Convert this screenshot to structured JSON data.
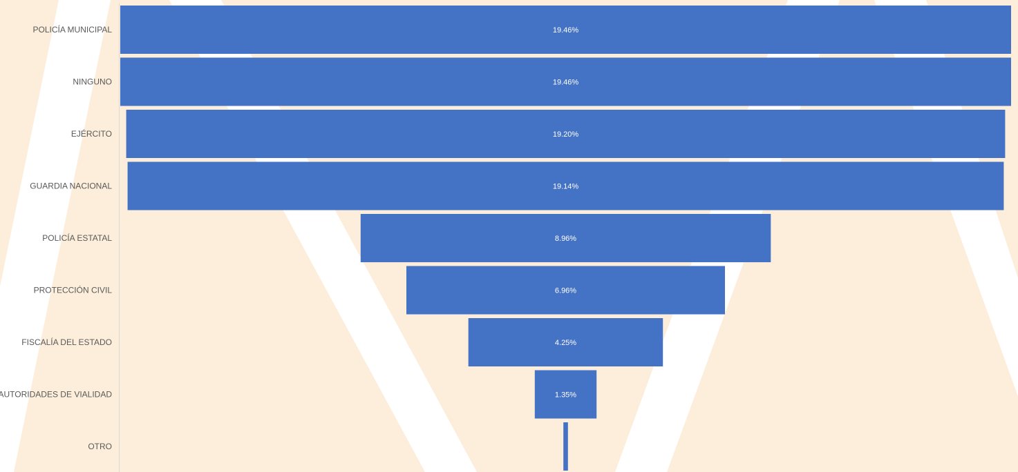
{
  "colors": {
    "background": "#fdeedb",
    "stripe": "#ffffff",
    "bar": "#4472c4",
    "bar_label_text": "#ffffff",
    "category_text": "#595959",
    "axis_line": "#d9d9d9"
  },
  "chart_data": {
    "type": "bar",
    "orientation": "horizontal-funnel",
    "categories": [
      "POLICÍA MUNICIPAL",
      "NINGUNO",
      "EJÉRCITO",
      "GUARDIA NACIONAL",
      "POLICÍA ESTATAL",
      "PROTECCIÓN CIVIL",
      "FISCALÍA DEL ESTADO",
      "AUTORIDADES DE VIALIDAD",
      "OTRO"
    ],
    "values": [
      19.46,
      19.46,
      19.2,
      19.14,
      8.96,
      6.96,
      4.25,
      1.35,
      0.1
    ],
    "value_labels": [
      "19.46%",
      "19.46%",
      "19.20%",
      "19.14%",
      "8.96%",
      "6.96%",
      "4.25%",
      "1.35%",
      ""
    ],
    "unit": "%",
    "grid": false,
    "legend": "none"
  }
}
